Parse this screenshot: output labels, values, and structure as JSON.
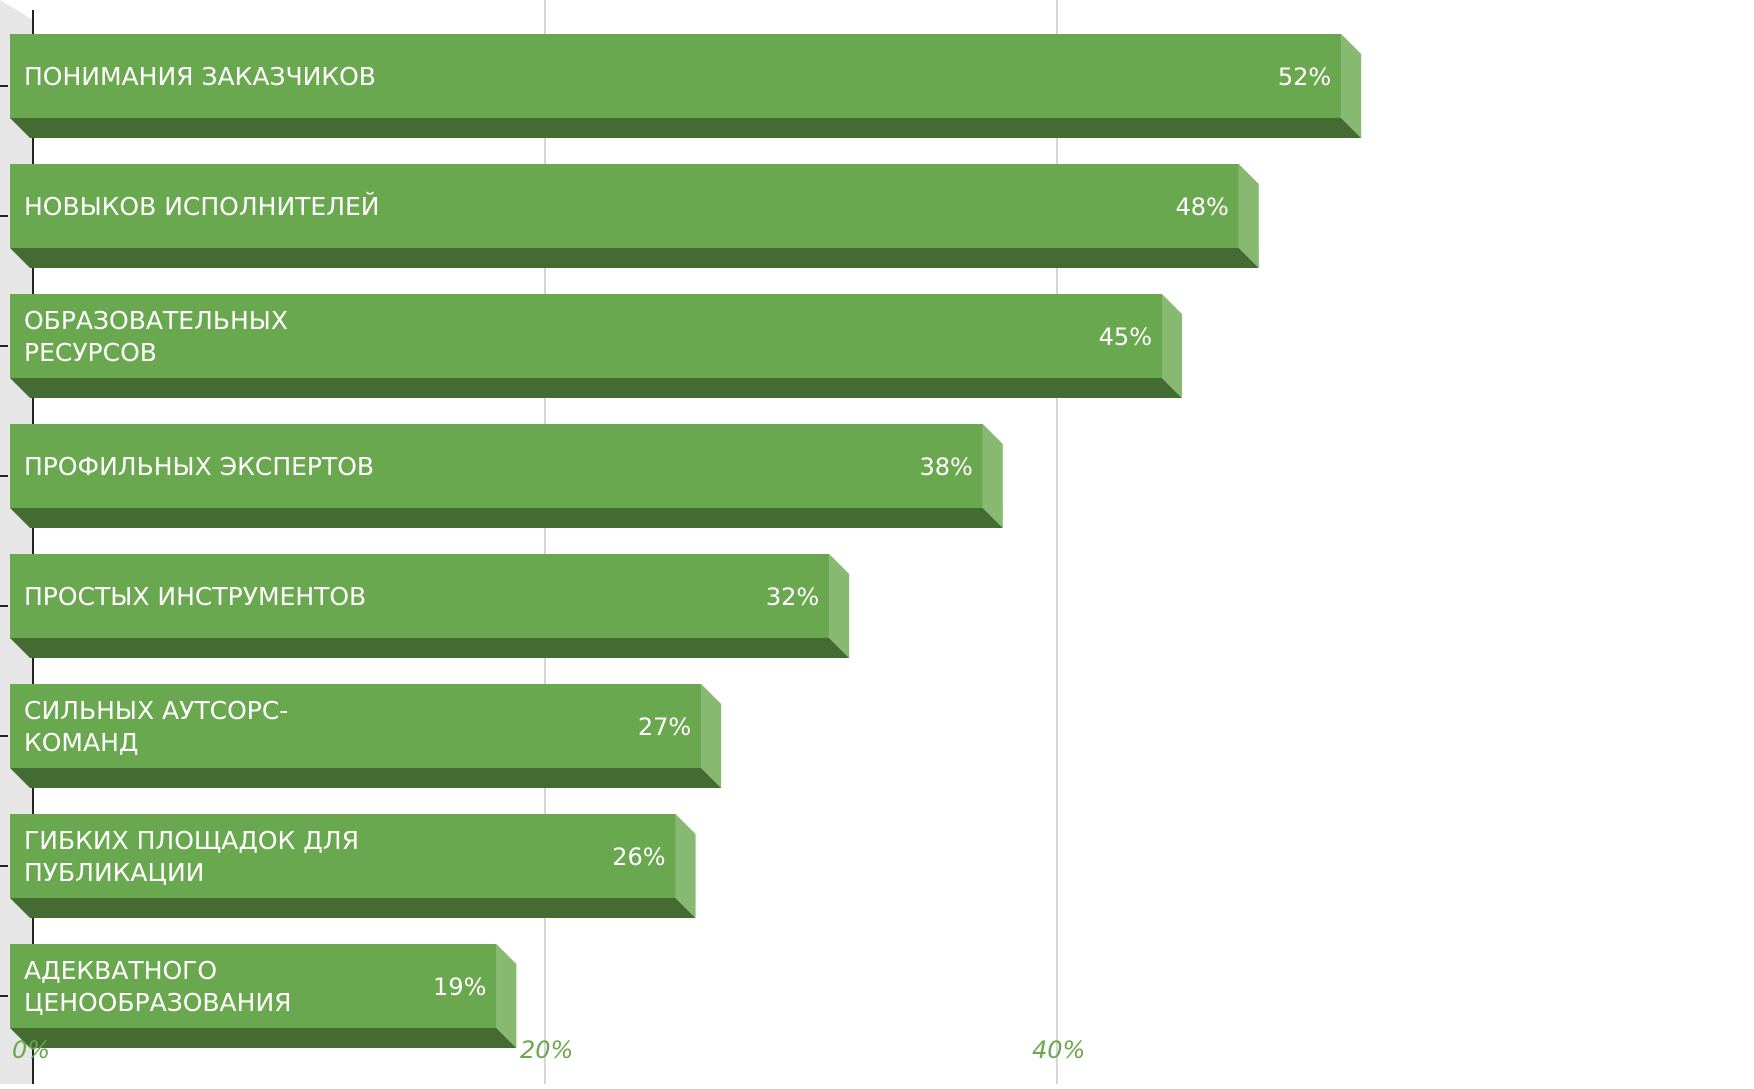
{
  "chart_data": {
    "type": "bar",
    "orientation": "horizontal",
    "style": "3d",
    "categories_lines": [
      [
        "ПОНИМАНИЯ ЗАКАЗЧИКОВ"
      ],
      [
        "НОВЫКОВ ИСПОЛНИТЕЛЕЙ"
      ],
      [
        "ОБРАЗОВАТЕЛЬНЫХ",
        "РЕСУРСОВ"
      ],
      [
        "ПРОФИЛЬНЫХ ЭКСПЕРТОВ"
      ],
      [
        "ПРОСТЫХ ИНСТРУМЕНТОВ"
      ],
      [
        "СИЛЬНЫХ АУТСОРС-",
        "КОМАНД"
      ],
      [
        "ГИБКИХ ПЛОЩАДОК ДЛЯ",
        "ПУБЛИКАЦИИ"
      ],
      [
        "АДЕКВАТНОГО",
        "ЦЕНООБРАЗОВАНИЯ"
      ]
    ],
    "values": [
      52,
      48,
      45,
      38,
      32,
      27,
      26,
      19
    ],
    "value_labels": [
      "52%",
      "48%",
      "45%",
      "38%",
      "32%",
      "27%",
      "26%",
      "19%"
    ],
    "x_ticks": [
      0,
      20,
      40
    ],
    "x_tick_labels": [
      "0%",
      "20%",
      "40%"
    ],
    "xlim": [
      0,
      60
    ],
    "grid": true,
    "legend": "none",
    "colors": {
      "bar_front": "#6aa84f",
      "bar_bottom": "#436b32",
      "bar_side": "#87ba70",
      "tick_label": "#6aa84f",
      "grid": "#c8c8c8",
      "wall": "#e6e6e6"
    }
  }
}
